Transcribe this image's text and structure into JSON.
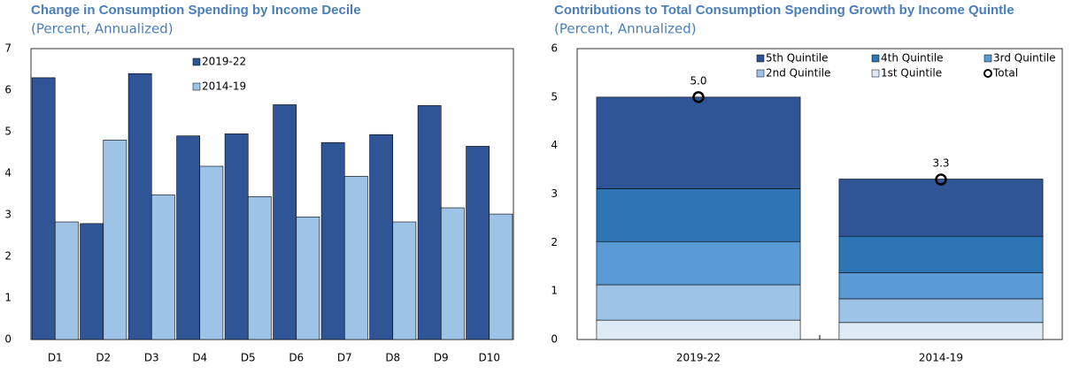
{
  "chart_data": [
    {
      "type": "bar",
      "title": "Change in Consumption Spending by Income Decile",
      "subtitle": "(Percent, Annualized)",
      "categories": [
        "D1",
        "D2",
        "D3",
        "D4",
        "D5",
        "D6",
        "D7",
        "D8",
        "D9",
        "D10"
      ],
      "series": [
        {
          "name": "2019-22",
          "color": "#2f5597",
          "values": [
            6.3,
            2.79,
            6.4,
            4.9,
            4.95,
            5.65,
            4.74,
            4.93,
            5.63,
            4.65
          ]
        },
        {
          "name": "2014-19",
          "color": "#9dc3e6",
          "values": [
            2.83,
            4.8,
            3.48,
            4.17,
            3.44,
            2.95,
            3.93,
            2.83,
            3.17,
            3.02
          ]
        }
      ],
      "ylim": [
        0,
        7
      ],
      "yticks": [
        0,
        1,
        2,
        3,
        4,
        5,
        6,
        7
      ],
      "grid": false
    },
    {
      "type": "stacked_bar",
      "title": "Contributions to Total Consumption Spending Growth by Income Quintle",
      "subtitle": "(Percent, Annualized)",
      "categories": [
        "2019-22",
        "2014-19"
      ],
      "series": [
        {
          "name": "1st Quintile",
          "color": "#deebf7",
          "values": [
            0.4,
            0.35
          ]
        },
        {
          "name": "2nd Quintile",
          "color": "#9dc3e6",
          "values": [
            0.73,
            0.49
          ]
        },
        {
          "name": "3rd Quintile",
          "color": "#5b9bd5",
          "values": [
            0.89,
            0.54
          ]
        },
        {
          "name": "4th Quintile",
          "color": "#2e75b6",
          "values": [
            1.09,
            0.75
          ]
        },
        {
          "name": "5th Quintile",
          "color": "#2f5597",
          "values": [
            1.89,
            1.18
          ]
        },
        {
          "name": "Total",
          "color": "#000000",
          "marker": "circle",
          "values": [
            5.0,
            3.3
          ],
          "value_labels": [
            "5.0",
            "3.3"
          ]
        }
      ],
      "legend_order": [
        4,
        3,
        2,
        1,
        0,
        5
      ],
      "ylim": [
        0,
        6
      ],
      "yticks": [
        0,
        1,
        2,
        3,
        4,
        5,
        6
      ],
      "grid": false
    }
  ]
}
